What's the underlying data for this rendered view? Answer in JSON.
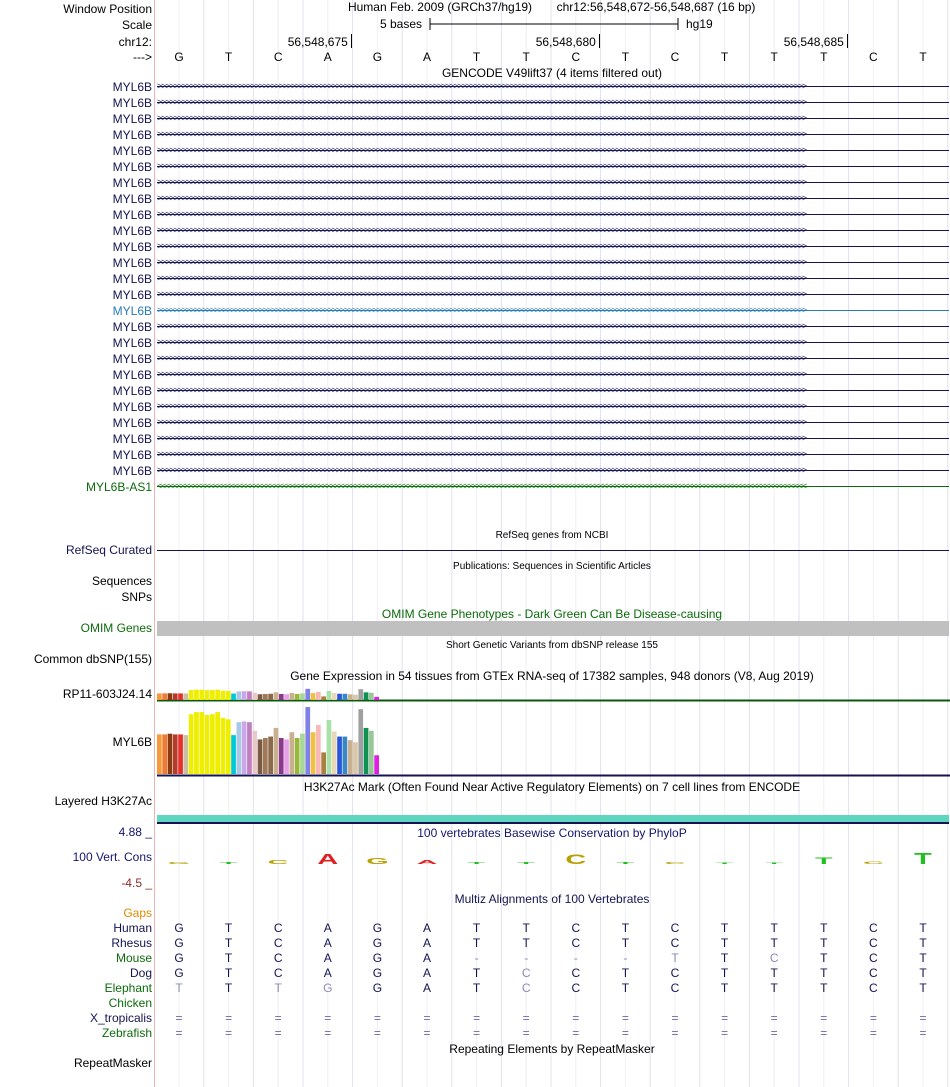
{
  "header": {
    "window_position_label": "Window Position",
    "scale_label": "Scale",
    "chrom_label": "chr12:",
    "strand_label": "--->",
    "assembly_text": "Human Feb. 2009 (GRCh37/hg19)",
    "position_text": "chr12:56,548,672-56,548,687 (16 bp)",
    "scale_text": "5 bases",
    "scale_db": "hg19",
    "coords": [
      "56,548,675",
      "56,548,680",
      "56,548,685"
    ]
  },
  "bases": [
    "G",
    "T",
    "C",
    "A",
    "G",
    "A",
    "T",
    "T",
    "C",
    "T",
    "C",
    "T",
    "T",
    "T",
    "C",
    "T"
  ],
  "gencode": {
    "title": "GENCODE V49lift37 (4 items filtered out)",
    "genes": [
      "MYL6B",
      "MYL6B",
      "MYL6B",
      "MYL6B",
      "MYL6B",
      "MYL6B",
      "MYL6B",
      "MYL6B",
      "MYL6B",
      "MYL6B",
      "MYL6B",
      "MYL6B",
      "MYL6B",
      "MYL6B",
      "MYL6B",
      "MYL6B",
      "MYL6B",
      "MYL6B",
      "MYL6B",
      "MYL6B",
      "MYL6B",
      "MYL6B",
      "MYL6B",
      "MYL6B",
      "MYL6B",
      "MYL6B-AS1"
    ],
    "highlight_index": 14
  },
  "refseq": {
    "title": "RefSeq genes from NCBI",
    "label": "RefSeq Curated"
  },
  "publications": {
    "title": "Publications: Sequences in Scientific Articles",
    "labels": [
      "Sequences",
      "SNPs"
    ]
  },
  "omim": {
    "title": "OMIM Gene Phenotypes - Dark Green Can Be Disease-causing",
    "label": "OMIM Genes"
  },
  "dbsnp": {
    "title": "Short Genetic Variants from dbSNP release 155",
    "label": "Common dbSNP(155)"
  },
  "gtex": {
    "title": "Gene Expression in 54 tissues from GTEx RNA-seq of 17382 samples, 948 donors (V8, Aug 2019)",
    "genes": [
      "RP11-603J24.14",
      "MYL6B"
    ],
    "bars": [
      {
        "c": "#f59a3a",
        "v": 0.55
      },
      {
        "c": "#f07a30",
        "v": 0.55
      },
      {
        "c": "#8a3a10",
        "v": 0.56
      },
      {
        "c": "#b83a2a",
        "v": 0.55
      },
      {
        "c": "#e8302a",
        "v": 0.55
      },
      {
        "c": "#c8c0a0",
        "v": 0.54
      },
      {
        "c": "#eeee00",
        "v": 0.83
      },
      {
        "c": "#eeee00",
        "v": 0.86
      },
      {
        "c": "#eeee00",
        "v": 0.86
      },
      {
        "c": "#eeee00",
        "v": 0.82
      },
      {
        "c": "#eeee00",
        "v": 0.83
      },
      {
        "c": "#eeee00",
        "v": 0.86
      },
      {
        "c": "#eeee00",
        "v": 0.78
      },
      {
        "c": "#eeee00",
        "v": 0.76
      },
      {
        "c": "#00c8d8",
        "v": 0.54
      },
      {
        "c": "#a8c8e8",
        "v": 0.72
      },
      {
        "c": "#c8a8e8",
        "v": 0.73
      },
      {
        "c": "#c080c0",
        "v": 0.72
      },
      {
        "c": "#e8c8c8",
        "v": 0.6
      },
      {
        "c": "#7a5a40",
        "v": 0.48
      },
      {
        "c": "#a07a58",
        "v": 0.5
      },
      {
        "c": "#8a6a4a",
        "v": 0.52
      },
      {
        "c": "#c8b090",
        "v": 0.64
      },
      {
        "c": "#8a3a8a",
        "v": 0.5
      },
      {
        "c": "#e8a0e8",
        "v": 0.48
      },
      {
        "c": "#c8b090",
        "v": 0.58
      },
      {
        "c": "#98b838",
        "v": 0.5
      },
      {
        "c": "#a8d898",
        "v": 0.56
      },
      {
        "c": "#8080e8",
        "v": 0.93
      },
      {
        "c": "#f0c040",
        "v": 0.58
      },
      {
        "c": "#f8b8b8",
        "v": 0.68
      },
      {
        "c": "#a88040",
        "v": 0.3
      },
      {
        "c": "#a8e0a8",
        "v": 0.75
      },
      {
        "c": "#e8d8b8",
        "v": 0.59
      },
      {
        "c": "#2858d8",
        "v": 0.52
      },
      {
        "c": "#3888c8",
        "v": 0.52
      },
      {
        "c": "#c8b090",
        "v": 0.47
      },
      {
        "c": "#d8c8a8",
        "v": 0.44
      },
      {
        "c": "#a0a0a0",
        "v": 0.9
      },
      {
        "c": "#109050",
        "v": 0.64
      },
      {
        "c": "#98c898",
        "v": 0.6
      },
      {
        "c": "#e020e0",
        "v": 0.26
      }
    ]
  },
  "h3k27ac": {
    "title": "H3K27Ac Mark (Often Found Near Active Regulatory Elements) on 7 cell lines from ENCODE",
    "label": "Layered H3K27Ac"
  },
  "cons": {
    "title": "100 vertebrates Basewise Conservation by PhyloP",
    "label": "100 Vert. Cons",
    "max": "4.88 _",
    "min": "-4.5 _"
  },
  "multiz": {
    "title": "Multiz Alignments of 100 Vertebrates",
    "gaps_label": "Gaps",
    "species": [
      {
        "name": "Human",
        "row": "GTCAGATTCTCTTTCT"
      },
      {
        "name": "Rhesus",
        "row": "GTCAGATTCTCTTTCT"
      },
      {
        "name": "Mouse",
        "row": "GTCAGA----TTCTCT"
      },
      {
        "name": "Dog",
        "row": "GTCAGATCCTCTTTCT"
      },
      {
        "name": "Elephant",
        "row": "TTTGGATCCTCTTTCT"
      },
      {
        "name": "Chicken",
        "row": ""
      },
      {
        "name": "X_tropicalis",
        "row": "================"
      },
      {
        "name": "Zebrafish",
        "row": "================"
      }
    ]
  },
  "repeatmasker": {
    "title": "Repeating Elements by RepeatMasker",
    "label": "RepeatMasker"
  },
  "colors": {
    "navy": "#141452",
    "dark_green": "#0b6b0b",
    "gaps_orange": "#e08a00",
    "omim_gray": "#c0c0c0",
    "h3k27ac_teal": "#5fd6c0"
  }
}
